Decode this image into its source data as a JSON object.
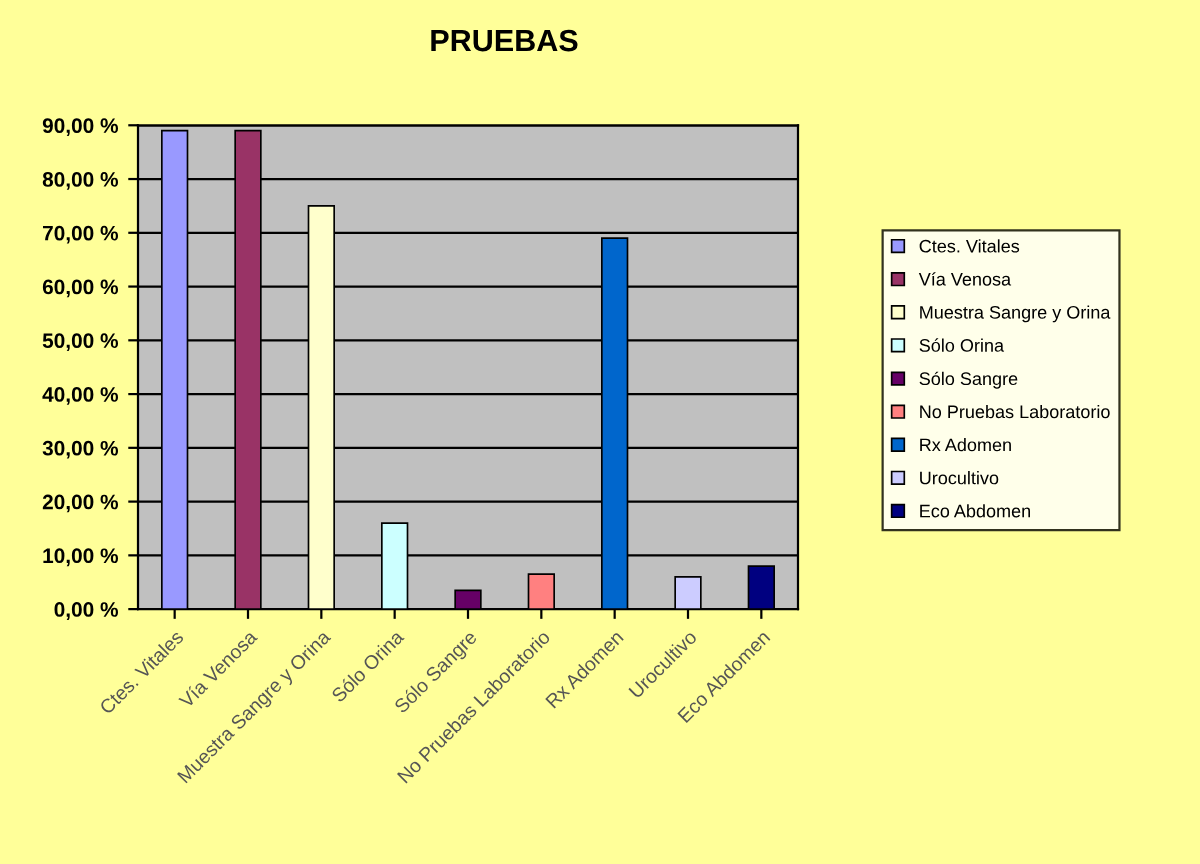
{
  "chart_data": {
    "type": "bar",
    "title": "PRUEBAS",
    "categories": [
      "Ctes. Vitales",
      "Vía Venosa",
      "Muestra Sangre y Orina",
      "Sólo Orina",
      "Sólo Sangre",
      "No Pruebas Laboratorio",
      "Rx Adomen",
      "Urocultivo",
      "Eco Abdomen"
    ],
    "series": [
      {
        "name": "Ctes. Vitales",
        "color": "#9999ff",
        "values": [
          89,
          null,
          null,
          null,
          null,
          null,
          null,
          null,
          null
        ]
      },
      {
        "name": "Vía Venosa",
        "color": "#993366",
        "values": [
          null,
          89,
          null,
          null,
          null,
          null,
          null,
          null,
          null
        ]
      },
      {
        "name": "Muestra Sangre y Orina",
        "color": "#ffffcc",
        "values": [
          null,
          null,
          75,
          null,
          null,
          null,
          null,
          null,
          null
        ]
      },
      {
        "name": "Sólo Orina",
        "color": "#ccffff",
        "values": [
          null,
          null,
          null,
          16,
          null,
          null,
          null,
          null,
          null
        ]
      },
      {
        "name": "Sólo Sangre",
        "color": "#660066",
        "values": [
          null,
          null,
          null,
          null,
          3.5,
          null,
          null,
          null,
          null
        ]
      },
      {
        "name": "No Pruebas Laboratorio",
        "color": "#ff8080",
        "values": [
          null,
          null,
          null,
          null,
          null,
          6.5,
          null,
          null,
          null
        ]
      },
      {
        "name": "Rx Adomen",
        "color": "#0066cc",
        "values": [
          null,
          null,
          null,
          null,
          null,
          null,
          69,
          null,
          null
        ]
      },
      {
        "name": "Urocultivo",
        "color": "#ccccff",
        "values": [
          null,
          null,
          null,
          null,
          null,
          null,
          null,
          6,
          null
        ]
      },
      {
        "name": "Eco Abdomen",
        "color": "#000080",
        "values": [
          null,
          null,
          null,
          null,
          null,
          null,
          null,
          null,
          8
        ]
      }
    ],
    "ylim": [
      0,
      90
    ],
    "yticks": [
      {
        "value": 0,
        "label": "0,00 %"
      },
      {
        "value": 10,
        "label": "10,00 %"
      },
      {
        "value": 20,
        "label": "20,00 %"
      },
      {
        "value": 30,
        "label": "30,00 %"
      },
      {
        "value": 40,
        "label": "40,00 %"
      },
      {
        "value": 50,
        "label": "50,00 %"
      },
      {
        "value": 60,
        "label": "60,00 %"
      },
      {
        "value": 70,
        "label": "70,00 %"
      },
      {
        "value": 80,
        "label": "80,00 %"
      },
      {
        "value": 90,
        "label": "90,00 %"
      }
    ],
    "grid": "y",
    "legend": "right"
  }
}
